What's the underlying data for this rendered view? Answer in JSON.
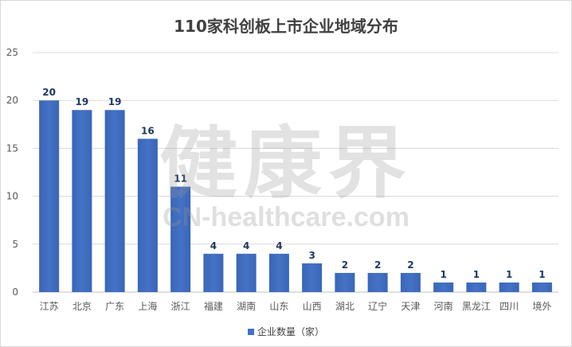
{
  "chart_data": {
    "type": "bar",
    "title": "110家科创板上市企业地域分布",
    "categories": [
      "江苏",
      "北京",
      "广东",
      "上海",
      "浙江",
      "福建",
      "湖南",
      "山东",
      "山西",
      "湖北",
      "辽宁",
      "天津",
      "河南",
      "黑龙江",
      "四川",
      "境外"
    ],
    "series": [
      {
        "name": "企业数量（家）",
        "values": [
          20,
          19,
          19,
          16,
          11,
          4,
          4,
          4,
          3,
          2,
          2,
          2,
          1,
          1,
          1,
          1
        ]
      }
    ],
    "ylim": [
      0,
      25
    ],
    "yticks": [
      0,
      5,
      10,
      15,
      20,
      25
    ],
    "grid": true,
    "legend_position": "bottom",
    "bar_color": "#4472c4",
    "data_label_color": "#1f3864"
  },
  "watermark": {
    "main": "健康界",
    "sub": "CN-healthcare.com"
  }
}
